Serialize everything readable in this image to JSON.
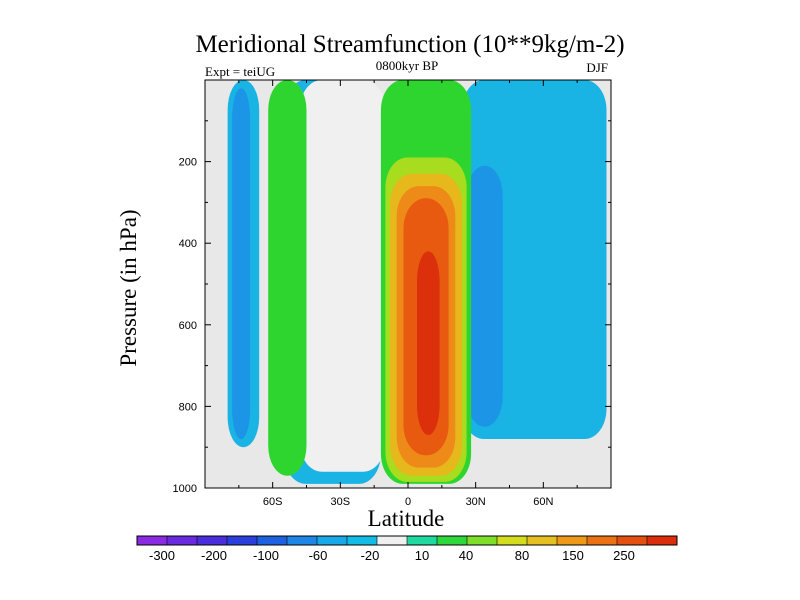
{
  "chart_data": {
    "type": "contour",
    "title": "Meridional Streamfunction (10**9kg/m-2)",
    "subtitle": "0800kyr BP",
    "left_label": "Expt = teiUG",
    "right_label": "DJF",
    "xlabel": "Latitude",
    "ylabel": "Pressure (in hPa)",
    "xlim": [
      -90,
      90
    ],
    "ylim": [
      1000,
      0
    ],
    "x_ticks": [
      {
        "value": -60,
        "label": "60S"
      },
      {
        "value": -30,
        "label": "30S"
      },
      {
        "value": 0,
        "label": "0"
      },
      {
        "value": 30,
        "label": "30N"
      },
      {
        "value": 60,
        "label": "60N"
      }
    ],
    "y_ticks": [
      {
        "value": 200,
        "label": "200"
      },
      {
        "value": 400,
        "label": "400"
      },
      {
        "value": 600,
        "label": "600"
      },
      {
        "value": 800,
        "label": "800"
      },
      {
        "value": 1000,
        "label": "1000"
      }
    ],
    "colorbar": {
      "labels": [
        "-300",
        "-200",
        "-100",
        "-60",
        "-20",
        "10",
        "40",
        "80",
        "150",
        "250"
      ],
      "colors": [
        "#8a2be2",
        "#6a2ae0",
        "#4a2ddc",
        "#2b3fdc",
        "#1c62e0",
        "#1e86e6",
        "#19a8e8",
        "#12bce6",
        "#f0f0f0",
        "#1ed9a0",
        "#2ed83a",
        "#7ede28",
        "#d4dc1e",
        "#e6c020",
        "#ee9a18",
        "#ea7214",
        "#e45010",
        "#dc2d0c"
      ]
    },
    "background_color": "#e8e8e8",
    "regions": [
      {
        "level": "-20",
        "lat_min": -80,
        "lat_max": -66,
        "p_top": 0,
        "p_bottom": 900
      },
      {
        "level": "-20",
        "lat_min": -55,
        "lat_max": -12,
        "p_top": 0,
        "p_bottom": 990
      },
      {
        "level": "-20",
        "lat_min": 24,
        "lat_max": 88,
        "p_top": 0,
        "p_bottom": 880
      },
      {
        "level": "-60",
        "lat_min": -78,
        "lat_max": -70,
        "p_top": 20,
        "p_bottom": 880
      },
      {
        "level": "-60",
        "lat_min": -34,
        "lat_max": -25,
        "p_top": 220,
        "p_bottom": 940
      },
      {
        "level": "-60",
        "lat_min": 26,
        "lat_max": 42,
        "p_top": 210,
        "p_bottom": 850
      },
      {
        "level": "10",
        "lat_min": -48,
        "lat_max": -10,
        "p_top": 0,
        "p_bottom": 960
      },
      {
        "level": "40",
        "lat_min": -62,
        "lat_max": -45,
        "p_top": 0,
        "p_bottom": 970
      },
      {
        "level": "40",
        "lat_min": -12,
        "lat_max": 28,
        "p_top": 0,
        "p_bottom": 990
      },
      {
        "level": "80",
        "lat_min": -10,
        "lat_max": 26,
        "p_top": 190,
        "p_bottom": 985
      },
      {
        "level": "150",
        "lat_min": -8,
        "lat_max": 24,
        "p_top": 230,
        "p_bottom": 970
      },
      {
        "level": "250",
        "lat_min": -5,
        "lat_max": 21,
        "p_top": 260,
        "p_bottom": 950
      },
      {
        "level": "250+",
        "lat_min": -2,
        "lat_max": 18,
        "p_top": 290,
        "p_bottom": 920
      },
      {
        "level": "max",
        "lat_min": 4,
        "lat_max": 14,
        "p_top": 420,
        "p_bottom": 870
      }
    ]
  }
}
